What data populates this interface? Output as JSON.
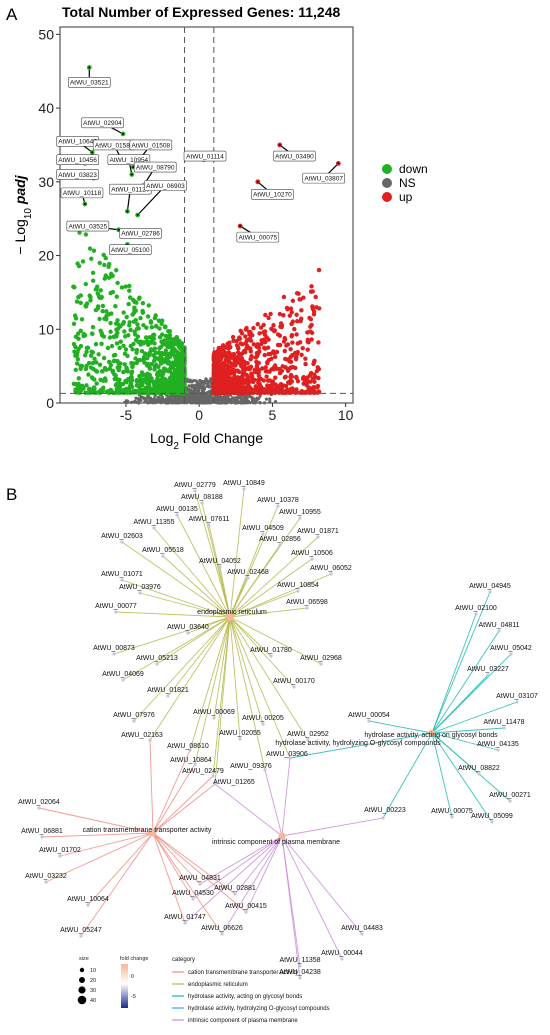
{
  "colors": {
    "down": "#22b022",
    "ns": "#666666",
    "up": "#e02020",
    "cation": "#f08a80",
    "er": "#b5b84a",
    "glycosyl": "#1ab8b0",
    "hydrolase": "#3aa0e0",
    "membrane": "#c98ad8"
  },
  "panelA": {
    "label": "A",
    "chart_data": {
      "type": "scatter",
      "title": "Total Number of Expressed Genes: 11,248",
      "xlabel_base": "Log",
      "xlabel_sub": "2",
      "xlabel_rest": " Fold Change",
      "ylabel_prefix": "− Log",
      "ylabel_sub": "10",
      "ylabel_italic": " padj",
      "xlim": [
        -9.5,
        10.5
      ],
      "ylim": [
        0,
        51
      ],
      "xticks": [
        -5,
        0,
        5,
        10
      ],
      "xtick_labels": [
        "-5",
        "0",
        "5",
        "10"
      ],
      "yticks": [
        0,
        10,
        20,
        30,
        40,
        50
      ],
      "ytick_labels": [
        "0",
        "10",
        "20",
        "30",
        "40",
        "50"
      ],
      "fc_thresholds": [
        -1,
        1
      ],
      "padj_threshold": 1.3,
      "legend_position": "right",
      "legend": [
        "down",
        "NS",
        "up"
      ],
      "labeled_genes": [
        {
          "name": "AtWU_03521",
          "x": -7.5,
          "y": 45.5,
          "group": "down"
        },
        {
          "name": "AtWU_02904",
          "x": -5.2,
          "y": 36.5,
          "group": "down"
        },
        {
          "name": "AtWU_10647",
          "x": -7.3,
          "y": 34.0,
          "group": "down"
        },
        {
          "name": "AtWU_01580",
          "x": -5.3,
          "y": 33.0,
          "group": "down"
        },
        {
          "name": "AtWU_01508",
          "x": -4.5,
          "y": 32.0,
          "group": "down"
        },
        {
          "name": "AtWU_10456",
          "x": -7.8,
          "y": 32.5,
          "group": "down"
        },
        {
          "name": "AtWU_10954",
          "x": -4.6,
          "y": 31.0,
          "group": "down"
        },
        {
          "name": "AtWU_08790",
          "x": -3.8,
          "y": 29.5,
          "group": "down"
        },
        {
          "name": "AtWU_03823",
          "x": -7.2,
          "y": 30.5,
          "group": "down"
        },
        {
          "name": "AtWU_01114",
          "x": 0.3,
          "y": 33.0,
          "group": "NS"
        },
        {
          "name": "AtWU_01120",
          "x": -4.9,
          "y": 26.0,
          "group": "down"
        },
        {
          "name": "AtWU_06903",
          "x": -4.2,
          "y": 25.5,
          "group": "down"
        },
        {
          "name": "AtWU_10118",
          "x": -7.8,
          "y": 27.0,
          "group": "down"
        },
        {
          "name": "AtWU_03525",
          "x": -5.5,
          "y": 23.5,
          "group": "down"
        },
        {
          "name": "AtWU_02786",
          "x": -4.7,
          "y": 23.0,
          "group": "down"
        },
        {
          "name": "AtWU_05100",
          "x": -4.9,
          "y": 21.5,
          "group": "down"
        },
        {
          "name": "AtWU_03490",
          "x": 5.5,
          "y": 35.0,
          "group": "up"
        },
        {
          "name": "AtWU_03807",
          "x": 9.5,
          "y": 32.5,
          "group": "up"
        },
        {
          "name": "AtWU_10270",
          "x": 4.0,
          "y": 30.0,
          "group": "up"
        },
        {
          "name": "AtWU_00075",
          "x": 2.8,
          "y": 24.0,
          "group": "up"
        }
      ]
    }
  },
  "panelB": {
    "label": "B",
    "chart_data": {
      "type": "network",
      "categories": [
        {
          "id": "cation",
          "name": "cation transmembrane transporter activity"
        },
        {
          "id": "er",
          "name": "endoplasmic reticulum"
        },
        {
          "id": "glycosyl",
          "name": "hydrolase activity, acting on glycosyl bonds"
        },
        {
          "id": "hydrolase",
          "name": "hydrolase activity, hydrolyzing O-glycosyl compounds"
        },
        {
          "id": "membrane",
          "name": "intrinsic component of plasma membrane"
        }
      ],
      "legend_title": "category",
      "size_legend_title": "size",
      "size_legend_values": [
        "10",
        "20",
        "30",
        "40"
      ],
      "fc_legend_title": "fold change",
      "fc_legend_ticks": [
        "0",
        "-5"
      ],
      "er_genes": [
        "AtWU_02779",
        "AtWU_10849",
        "AtWU_08188",
        "AtWU_10378",
        "AtWU_00135",
        "AtWU_10955",
        "AtWU_11355",
        "AtWU_07611",
        "AtWU_04509",
        "AtWU_01871",
        "AtWU_02603",
        "AtWU_02856",
        "AtWU_05518",
        "AtWU_04052",
        "AtWU_10506",
        "AtWU_01071",
        "AtWU_06052",
        "AtWU_03976",
        "AtWU_02468",
        "AtWU_00077",
        "AtWU_10854",
        "AtWU_03640",
        "AtWU_06598",
        "AtWU_00873",
        "AtWU_05213",
        "AtWU_01780",
        "AtWU_02968",
        "AtWU_04069",
        "AtWU_01821",
        "AtWU_00170",
        "AtWU_07976",
        "AtWU_00069",
        "AtWU_00205",
        "AtWU_02055",
        "AtWU_02952"
      ],
      "glycosyl_genes": [
        "AtWU_04945",
        "AtWU_02100",
        "AtWU_04811",
        "AtWU_05042",
        "AtWU_03227",
        "AtWU_03107",
        "AtWU_11478",
        "AtWU_04135",
        "AtWU_08822",
        "AtWU_00271",
        "AtWU_05099",
        "AtWU_00075",
        "AtWU_00054"
      ],
      "shared_genes": [
        "AtWU_03906",
        "AtWU_09376",
        "AtWU_01265",
        "AtWU_02479",
        "AtWU_10864",
        "AtWU_08610",
        "AtWU_02163",
        "AtWU_00223"
      ],
      "cation_genes": [
        "AtWU_02064",
        "AtWU_06881",
        "AtWU_01702",
        "AtWU_03232",
        "AtWU_10064",
        "AtWU_05247"
      ],
      "membrane_genes": [
        "AtWU_04831",
        "AtWU_04530",
        "AtWU_02881",
        "AtWU_00415",
        "AtWU_01747",
        "AtWU_06626",
        "AtWU_04483",
        "AtWU_00044",
        "AtWU_11358",
        "AtWU_04238"
      ]
    }
  }
}
